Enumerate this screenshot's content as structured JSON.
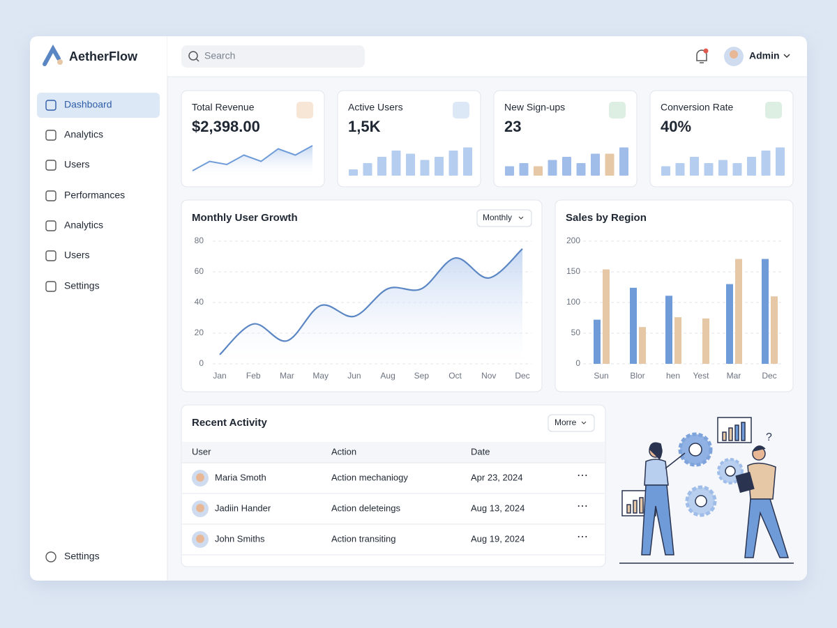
{
  "brand": "AetherFlow",
  "nav": [
    "Dashboard",
    "Analytics",
    "Users",
    "Performances",
    "Analytics",
    "Users",
    "Settings"
  ],
  "nav_bottom": "Settings",
  "search_placeholder": "Search",
  "user": "Admin",
  "kpis": [
    {
      "label": "Total Revenue",
      "value": "$2,398.00",
      "type": "line",
      "color": "#6f9bd8",
      "values": [
        0,
        3,
        2,
        5,
        3,
        7,
        5,
        8
      ]
    },
    {
      "label": "Active Users",
      "value": "1,5K",
      "type": "bar",
      "colors": [
        "#b5cdee",
        "#b5cdee",
        "#b5cdee",
        "#b5cdee",
        "#b5cdee",
        "#b5cdee",
        "#b5cdee",
        "#b5cdee",
        "#b5cdee"
      ],
      "values": [
        2,
        4,
        6,
        8,
        7,
        5,
        6,
        8,
        9
      ]
    },
    {
      "label": "New Sign-ups",
      "value": "23",
      "type": "bar",
      "colors": [
        "#9fbde8",
        "#9fbde8",
        "#e6c7a6",
        "#9fbde8",
        "#9fbde8",
        "#9fbde8",
        "#9fbde8",
        "#e6c7a6",
        "#9fbde8"
      ],
      "values": [
        3,
        4,
        3,
        5,
        6,
        4,
        7,
        7,
        9
      ]
    },
    {
      "label": "Conversion Rate",
      "value": "40%",
      "type": "bar",
      "colors": [
        "#b5cdee",
        "#b5cdee",
        "#b5cdee",
        "#b5cdee",
        "#b5cdee",
        "#b5cdee",
        "#b5cdee",
        "#b5cdee",
        "#b5cdee"
      ],
      "values": [
        3,
        4,
        6,
        4,
        5,
        4,
        6,
        8,
        9
      ]
    }
  ],
  "chart_data": [
    {
      "type": "line",
      "title": "Monthly User Growth",
      "filter": "Monthly",
      "color": "#5b86c4",
      "categories": [
        "Jan",
        "Feb",
        "Mar",
        "May",
        "Jun",
        "Aug",
        "Sep",
        "Oct",
        "Nov",
        "Dec"
      ],
      "values": [
        6,
        26,
        15,
        38,
        31,
        49,
        49,
        69,
        56,
        75
      ],
      "ylim": [
        0,
        80
      ],
      "yticks": [
        0,
        20,
        40,
        60,
        80
      ],
      "grid": true
    },
    {
      "type": "bar",
      "title": "Sales by Region",
      "categories": [
        "Sun",
        "Blor",
        "hen",
        "Yest",
        "Mar",
        "Dec"
      ],
      "series": [
        {
          "color": "#6f9bd8",
          "values": [
            72,
            124,
            111,
            null,
            130,
            171
          ]
        },
        {
          "color": "#e6c7a6",
          "values": [
            154,
            60,
            76,
            74,
            171,
            110
          ]
        }
      ],
      "ylim": [
        0,
        200
      ],
      "yticks": [
        0,
        50,
        100,
        150,
        200
      ],
      "grid": true
    }
  ],
  "activity": {
    "title": "Recent Activity",
    "filter": "Morre",
    "columns": [
      "User",
      "Action",
      "Date"
    ],
    "rows": [
      [
        "Maria Smoth",
        "Action mechaniogy",
        "Apr 23, 2024"
      ],
      [
        "Jadiin Hander",
        "Action deleteings",
        "Aug 13, 2024"
      ],
      [
        "John Smiths",
        "Action transiting",
        "Aug 19, 2024"
      ]
    ]
  }
}
